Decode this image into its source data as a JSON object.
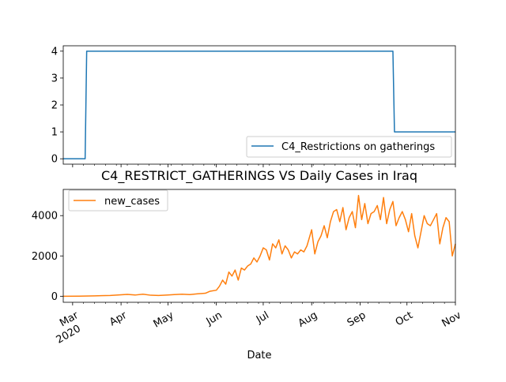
{
  "chart_data": [
    {
      "type": "line",
      "title": "",
      "xlabel": "",
      "ylabel": "",
      "ylim": [
        -0.2,
        4.2
      ],
      "yticks": [
        0,
        1,
        2,
        3,
        4
      ],
      "xlim": [
        "2020-02-24",
        "2020-11-01"
      ],
      "legend_position": "lower-right",
      "grid": false,
      "series": [
        {
          "name": "C4_Restrictions on gatherings",
          "color": "#1f77b4",
          "x": [
            "2020-02-24",
            "2020-03-09",
            "2020-03-10",
            "2020-09-22",
            "2020-09-23",
            "2020-11-01"
          ],
          "y": [
            0,
            0,
            4,
            4,
            1,
            1
          ]
        }
      ]
    },
    {
      "type": "line",
      "title": "C4_RESTRICT_GATHERINGS VS Daily Cases in Iraq",
      "xlabel": "Date",
      "ylabel": "",
      "ylim": [
        -300,
        5300
      ],
      "yticks": [
        0,
        2000,
        4000
      ],
      "xlim": [
        "2020-02-24",
        "2020-11-01"
      ],
      "xticks": [
        {
          "date": "2020-03-01",
          "label": "Mar",
          "sublabel": "2020"
        },
        {
          "date": "2020-04-01",
          "label": "Apr",
          "sublabel": ""
        },
        {
          "date": "2020-05-01",
          "label": "May",
          "sublabel": ""
        },
        {
          "date": "2020-06-01",
          "label": "Jun",
          "sublabel": ""
        },
        {
          "date": "2020-07-01",
          "label": "Jul",
          "sublabel": ""
        },
        {
          "date": "2020-08-01",
          "label": "Aug",
          "sublabel": ""
        },
        {
          "date": "2020-09-01",
          "label": "Sep",
          "sublabel": ""
        },
        {
          "date": "2020-10-01",
          "label": "Oct",
          "sublabel": ""
        },
        {
          "date": "2020-11-01",
          "label": "Nov",
          "sublabel": ""
        }
      ],
      "legend_position": "upper-left",
      "grid": false,
      "series": [
        {
          "name": "new_cases",
          "color": "#ff7f0e",
          "x": [
            "2020-02-24",
            "2020-03-05",
            "2020-03-15",
            "2020-03-25",
            "2020-04-01",
            "2020-04-05",
            "2020-04-10",
            "2020-04-15",
            "2020-04-20",
            "2020-04-25",
            "2020-05-01",
            "2020-05-05",
            "2020-05-10",
            "2020-05-15",
            "2020-05-20",
            "2020-05-25",
            "2020-05-28",
            "2020-06-01",
            "2020-06-03",
            "2020-06-05",
            "2020-06-07",
            "2020-06-09",
            "2020-06-11",
            "2020-06-13",
            "2020-06-15",
            "2020-06-17",
            "2020-06-19",
            "2020-06-21",
            "2020-06-23",
            "2020-06-25",
            "2020-06-27",
            "2020-06-29",
            "2020-07-01",
            "2020-07-03",
            "2020-07-05",
            "2020-07-07",
            "2020-07-09",
            "2020-07-11",
            "2020-07-13",
            "2020-07-15",
            "2020-07-17",
            "2020-07-19",
            "2020-07-21",
            "2020-07-23",
            "2020-07-25",
            "2020-07-27",
            "2020-07-29",
            "2020-08-01",
            "2020-08-03",
            "2020-08-05",
            "2020-08-07",
            "2020-08-09",
            "2020-08-11",
            "2020-08-13",
            "2020-08-15",
            "2020-08-17",
            "2020-08-19",
            "2020-08-21",
            "2020-08-23",
            "2020-08-25",
            "2020-08-27",
            "2020-08-29",
            "2020-08-31",
            "2020-09-02",
            "2020-09-04",
            "2020-09-06",
            "2020-09-08",
            "2020-09-10",
            "2020-09-12",
            "2020-09-14",
            "2020-09-16",
            "2020-09-18",
            "2020-09-20",
            "2020-09-22",
            "2020-09-24",
            "2020-09-26",
            "2020-09-28",
            "2020-09-30",
            "2020-10-02",
            "2020-10-04",
            "2020-10-06",
            "2020-10-08",
            "2020-10-10",
            "2020-10-12",
            "2020-10-14",
            "2020-10-16",
            "2020-10-18",
            "2020-10-20",
            "2020-10-22",
            "2020-10-24",
            "2020-10-26",
            "2020-10-28",
            "2020-10-30",
            "2020-11-01"
          ],
          "y": [
            0,
            5,
            20,
            40,
            70,
            90,
            60,
            100,
            50,
            40,
            60,
            80,
            100,
            80,
            120,
            150,
            250,
            300,
            500,
            800,
            600,
            1200,
            1000,
            1300,
            800,
            1400,
            1300,
            1500,
            1600,
            1900,
            1700,
            2000,
            2400,
            2300,
            1800,
            2600,
            2400,
            2800,
            2100,
            2500,
            2300,
            1900,
            2200,
            2100,
            2300,
            2200,
            2500,
            3300,
            2100,
            2700,
            3000,
            3500,
            2900,
            3700,
            4200,
            4300,
            3700,
            4400,
            3300,
            3900,
            4200,
            3400,
            5000,
            3800,
            4600,
            3600,
            4100,
            4200,
            4500,
            3800,
            4900,
            3600,
            4300,
            4700,
            3500,
            3900,
            4200,
            3800,
            3200,
            4100,
            3000,
            2400,
            3200,
            4000,
            3600,
            3500,
            3800,
            4100,
            2600,
            3400,
            3900,
            3700,
            2000,
            2600
          ]
        }
      ]
    }
  ]
}
